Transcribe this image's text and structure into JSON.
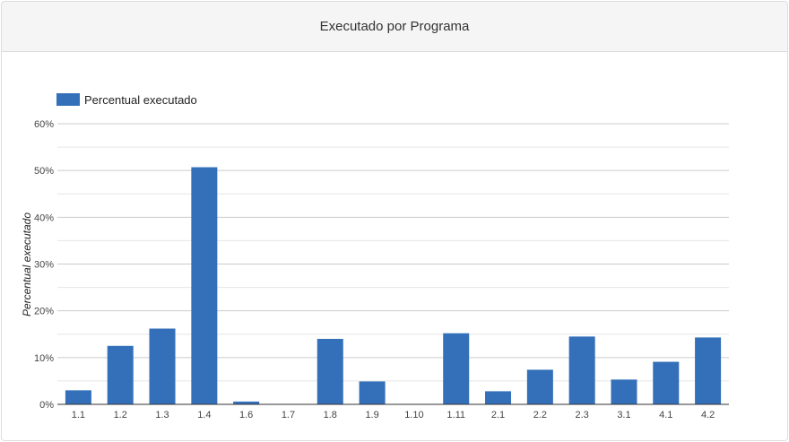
{
  "panel": {
    "title": "Executado por Programa"
  },
  "colors": {
    "bar": "#3470b9",
    "grid": "#cccccc",
    "minor_grid": "#e6e6e6",
    "axis": "#333333"
  },
  "chart_data": {
    "type": "bar",
    "title": "",
    "xlabel": "",
    "ylabel": "Percentual executado",
    "categories": [
      "1.1",
      "1.2",
      "1.3",
      "1.4",
      "1.6",
      "1.7",
      "1.8",
      "1.9",
      "1.10",
      "1.11",
      "2.1",
      "2.2",
      "2.3",
      "3.1",
      "4.1",
      "4.2"
    ],
    "series": [
      {
        "name": "Percentual executado",
        "values": [
          3,
          12.5,
          16.2,
          50.7,
          0.6,
          0,
          14,
          4.9,
          0,
          15.2,
          2.8,
          7.4,
          14.5,
          5.3,
          9.1,
          14.3
        ]
      }
    ],
    "ylim": [
      0,
      60
    ],
    "yticks": [
      0,
      10,
      20,
      30,
      40,
      50,
      60
    ],
    "ytick_labels": [
      "0%",
      "10%",
      "20%",
      "30%",
      "40%",
      "50%",
      "60%"
    ],
    "grid": true,
    "legend_position": "top-left"
  }
}
